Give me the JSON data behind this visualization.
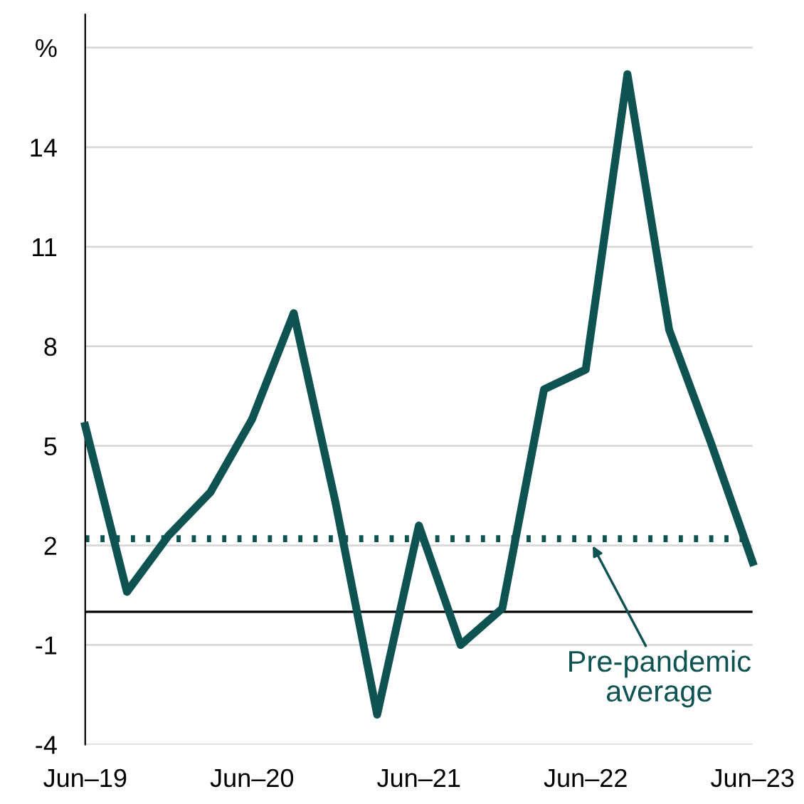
{
  "chart_data": {
    "type": "line",
    "categories": [
      "Jun–19",
      null,
      null,
      null,
      "Jun–20",
      null,
      null,
      null,
      "Jun–21",
      null,
      null,
      null,
      "Jun–22",
      null,
      null,
      null,
      "Jun–23"
    ],
    "series": [
      {
        "color": "#0f5252",
        "values": [
          5.6,
          0.6,
          2.3,
          3.6,
          5.8,
          9.0,
          3.3,
          -3.1,
          2.6,
          -1.0,
          0.1,
          6.7,
          7.3,
          16.2,
          8.5,
          5.1,
          1.5
        ]
      }
    ],
    "ylim": [
      -4,
      18
    ],
    "yticks": [
      -4,
      -1,
      2,
      5,
      8,
      11,
      14,
      {
        "value": 17,
        "label": "%"
      }
    ],
    "grid": "y",
    "line_style": "solid",
    "marker": "none",
    "ref_lines": [
      {
        "axis": "y",
        "value": 2.2,
        "color": "#0f5252",
        "line_style": "dotted"
      }
    ],
    "annotations": [
      "Pre-pandemic\naverage"
    ]
  }
}
